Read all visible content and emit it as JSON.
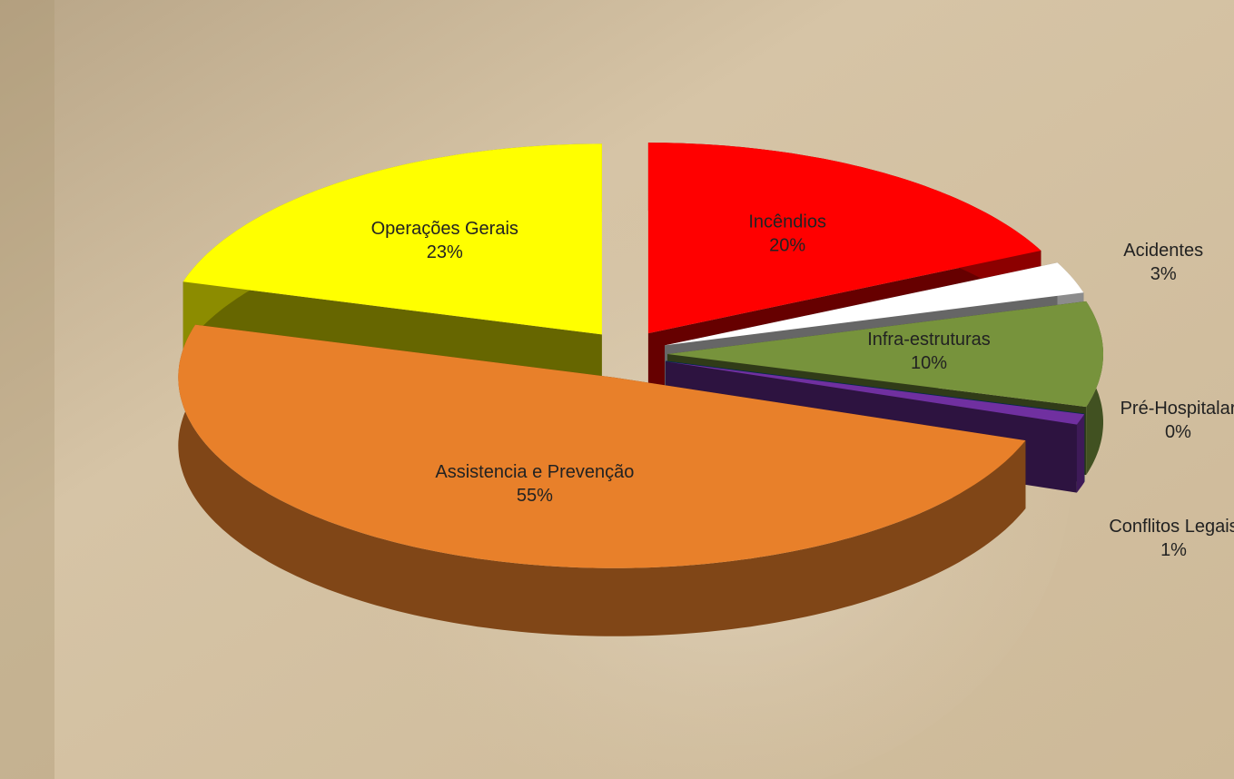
{
  "chart_data": {
    "type": "pie3d",
    "categories": [
      "Incêndios",
      "Acidentes",
      "Infra-estruturas",
      "Pré-Hospitalar",
      "Conflitos Legais",
      "Assistencia e Prevenção",
      "Operações Gerais"
    ],
    "values": [
      20,
      3,
      10,
      0,
      1,
      55,
      23
    ],
    "value_labels": [
      "20%",
      "3%",
      "10%",
      "0%",
      "1%",
      "55%",
      "23%"
    ],
    "colors": [
      "#ff0000",
      "#ffffff",
      "#77933c",
      "#0070c0",
      "#7030a0",
      "#e8802a",
      "#ffff00"
    ]
  }
}
